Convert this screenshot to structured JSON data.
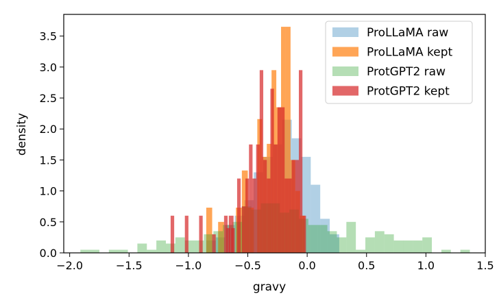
{
  "chart_data": {
    "type": "bar",
    "subtype": "histogram",
    "xlabel": "gravy",
    "ylabel": "density",
    "xlim": [
      -2.05,
      1.5
    ],
    "ylim": [
      0,
      3.85
    ],
    "x_ticks": [
      "−2.0",
      "−1.5",
      "−1.0",
      "−0.5",
      "0.0",
      "0.5",
      "1.0",
      "1.5"
    ],
    "y_ticks": [
      "0.0",
      "0.5",
      "1.0",
      "1.5",
      "2.0",
      "2.5",
      "3.0",
      "3.5"
    ],
    "grid": false,
    "legend_position": "top-right",
    "series": [
      {
        "name": "ProLLaMA raw",
        "color": "#1f77b4",
        "opacity": 0.35,
        "bins": [
          [
            -0.85,
            -0.77,
            0.2
          ],
          [
            -0.77,
            -0.69,
            0.25
          ],
          [
            -0.69,
            -0.61,
            0.45
          ],
          [
            -0.61,
            -0.53,
            0.6
          ],
          [
            -0.53,
            -0.45,
            0.85
          ],
          [
            -0.45,
            -0.37,
            1.3
          ],
          [
            -0.37,
            -0.29,
            1.55
          ],
          [
            -0.29,
            -0.21,
            1.75
          ],
          [
            -0.21,
            -0.13,
            2.15
          ],
          [
            -0.13,
            -0.05,
            1.85
          ],
          [
            -0.05,
            0.03,
            1.55
          ],
          [
            0.03,
            0.11,
            1.1
          ],
          [
            0.11,
            0.19,
            0.55
          ],
          [
            0.19,
            0.27,
            0.3
          ]
        ]
      },
      {
        "name": "ProLLaMA kept",
        "color": "#ff7f0e",
        "opacity": 0.7,
        "bins": [
          [
            -0.85,
            -0.8,
            0.73
          ],
          [
            -0.75,
            -0.7,
            0.5
          ],
          [
            -0.6,
            -0.55,
            0.73
          ],
          [
            -0.55,
            -0.5,
            1.33
          ],
          [
            -0.5,
            -0.45,
            0.73
          ],
          [
            -0.42,
            -0.38,
            2.16
          ],
          [
            -0.38,
            -0.34,
            1.55
          ],
          [
            -0.34,
            -0.3,
            1.76
          ],
          [
            -0.3,
            -0.26,
            2.95
          ],
          [
            -0.26,
            -0.22,
            2.35
          ],
          [
            -0.22,
            -0.18,
            3.65
          ],
          [
            -0.18,
            -0.14,
            3.65
          ],
          [
            -0.14,
            -0.1,
            1.5
          ],
          [
            -0.1,
            -0.06,
            1.0
          ],
          [
            -0.06,
            -0.02,
            0.6
          ]
        ]
      },
      {
        "name": "ProtGPT2 raw",
        "color": "#2ca02c",
        "opacity": 0.35,
        "bins": [
          [
            -1.91,
            -1.75,
            0.05
          ],
          [
            -1.67,
            -1.51,
            0.05
          ],
          [
            -1.43,
            -1.35,
            0.15
          ],
          [
            -1.35,
            -1.27,
            0.05
          ],
          [
            -1.27,
            -1.19,
            0.2
          ],
          [
            -1.19,
            -1.11,
            0.15
          ],
          [
            -1.11,
            -1.03,
            0.25
          ],
          [
            -1.03,
            -0.95,
            0.2
          ],
          [
            -0.95,
            -0.87,
            0.2
          ],
          [
            -0.87,
            -0.79,
            0.3
          ],
          [
            -0.79,
            -0.71,
            0.35
          ],
          [
            -0.71,
            -0.63,
            0.45
          ],
          [
            -0.63,
            -0.55,
            0.5
          ],
          [
            -0.55,
            -0.47,
            0.75
          ],
          [
            -0.47,
            -0.39,
            0.7
          ],
          [
            -0.39,
            -0.31,
            0.8
          ],
          [
            -0.31,
            -0.23,
            0.8
          ],
          [
            -0.23,
            -0.15,
            0.65
          ],
          [
            -0.15,
            -0.07,
            0.7
          ],
          [
            -0.07,
            0.01,
            0.55
          ],
          [
            0.01,
            0.09,
            0.45
          ],
          [
            0.09,
            0.17,
            0.45
          ],
          [
            0.17,
            0.25,
            0.35
          ],
          [
            0.25,
            0.33,
            0.25
          ],
          [
            0.33,
            0.41,
            0.5
          ],
          [
            0.41,
            0.49,
            0.05
          ],
          [
            0.49,
            0.57,
            0.25
          ],
          [
            0.57,
            0.65,
            0.35
          ],
          [
            0.65,
            0.73,
            0.3
          ],
          [
            0.73,
            0.81,
            0.2
          ],
          [
            0.81,
            0.89,
            0.2
          ],
          [
            0.89,
            0.97,
            0.2
          ],
          [
            0.97,
            1.05,
            0.25
          ],
          [
            1.13,
            1.21,
            0.05
          ],
          [
            1.29,
            1.37,
            0.05
          ]
        ]
      },
      {
        "name": "ProtGPT2 kept",
        "color": "#d62728",
        "opacity": 0.7,
        "bins": [
          [
            -1.15,
            -1.12,
            0.6
          ],
          [
            -1.03,
            -1.0,
            0.6
          ],
          [
            -0.91,
            -0.88,
            0.6
          ],
          [
            -0.8,
            -0.77,
            0.3
          ],
          [
            -0.7,
            -0.67,
            0.6
          ],
          [
            -0.68,
            -0.65,
            0.4
          ],
          [
            -0.66,
            -0.62,
            0.6
          ],
          [
            -0.64,
            -0.61,
            0.4
          ],
          [
            -0.59,
            -0.56,
            1.2
          ],
          [
            -0.55,
            -0.52,
            0.75
          ],
          [
            -0.52,
            -0.49,
            1.2
          ],
          [
            -0.49,
            -0.46,
            1.75
          ],
          [
            -0.46,
            -0.43,
            1.2
          ],
          [
            -0.43,
            -0.4,
            1.75
          ],
          [
            -0.4,
            -0.37,
            2.95
          ],
          [
            -0.37,
            -0.34,
            1.5
          ],
          [
            -0.34,
            -0.31,
            1.2
          ],
          [
            -0.31,
            -0.28,
            2.65
          ],
          [
            -0.28,
            -0.25,
            1.75
          ],
          [
            -0.25,
            -0.22,
            2.35
          ],
          [
            -0.22,
            -0.19,
            2.35
          ],
          [
            -0.19,
            -0.16,
            1.2
          ],
          [
            -0.16,
            -0.13,
            1.2
          ],
          [
            -0.13,
            -0.1,
            1.5
          ],
          [
            -0.1,
            -0.07,
            1.5
          ],
          [
            -0.07,
            -0.04,
            2.95
          ],
          [
            -0.04,
            -0.01,
            0.6
          ]
        ]
      }
    ]
  }
}
